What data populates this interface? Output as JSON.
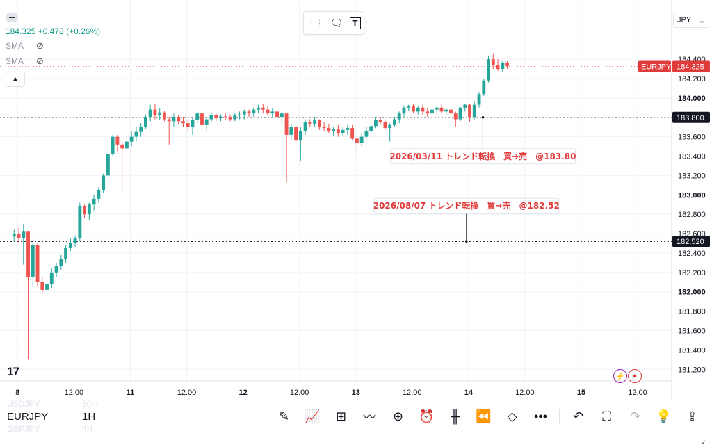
{
  "header": {
    "last_price": "184.325",
    "change": "+0.478 (+0.26%)",
    "indicators": [
      "SMA",
      "SMA"
    ],
    "currency": "JPY",
    "currency_caret": "⌄"
  },
  "floating_toolbar": {
    "drag_icon": "⋮⋮",
    "comment_icon": "🗨",
    "text_tool_icon": "T"
  },
  "bottom": {
    "symbol": "EURJPY",
    "timeframe": "1H",
    "ghost_above": {
      "symbol": "USDJPY",
      "tf": "30m"
    },
    "ghost_below": {
      "symbol": "GBPJPY",
      "tf": "4H"
    }
  },
  "logo": "17",
  "colors": {
    "up": "#26a69a",
    "down": "#ef5350",
    "label_red": "#e03b3b",
    "axis_text": "#131722",
    "grid": "#f0f3fa"
  },
  "chart_data": {
    "type": "candlestick",
    "symbol": "EURJPY",
    "interval": "1H",
    "y_range": [
      181.08,
      184.58
    ],
    "y_ticks": [
      "184.400",
      "184.200",
      "184.000",
      "183.800",
      "183.600",
      "183.400",
      "183.200",
      "183.000",
      "182.800",
      "182.600",
      "182.400",
      "182.200",
      "182.000",
      "181.800",
      "181.600",
      "181.400",
      "181.200"
    ],
    "x_ticks": [
      {
        "label": "8",
        "x": 0.75,
        "bold": true
      },
      {
        "label": "12:00",
        "x": 12.75
      },
      {
        "label": "11",
        "x": 24.75,
        "bold": true
      },
      {
        "label": "12:00",
        "x": 36.75
      },
      {
        "label": "12",
        "x": 48.75,
        "bold": true
      },
      {
        "label": "12:00",
        "x": 60.75
      },
      {
        "label": "13",
        "x": 72.75,
        "bold": true
      },
      {
        "label": "12:00",
        "x": 84.75
      },
      {
        "label": "14",
        "x": 96.75,
        "bold": true
      },
      {
        "label": "12:00",
        "x": 108.75
      },
      {
        "label": "15",
        "x": 120.75,
        "bold": true
      },
      {
        "label": "12:00",
        "x": 132.75
      }
    ],
    "x_range": [
      -3,
      140
    ],
    "candles": [
      [
        182.57,
        182.64,
        182.52,
        182.6
      ],
      [
        182.6,
        182.66,
        182.5,
        182.55
      ],
      [
        182.55,
        182.7,
        182.28,
        182.62
      ],
      [
        182.62,
        182.62,
        181.3,
        182.15
      ],
      [
        182.15,
        182.52,
        182.05,
        182.48
      ],
      [
        182.48,
        182.5,
        182.05,
        182.1
      ],
      [
        182.1,
        182.15,
        181.98,
        182.02
      ],
      [
        182.02,
        182.12,
        181.92,
        182.08
      ],
      [
        182.08,
        182.24,
        182.04,
        182.2
      ],
      [
        182.2,
        182.3,
        182.15,
        182.27
      ],
      [
        182.27,
        182.38,
        182.22,
        182.34
      ],
      [
        182.34,
        182.48,
        182.3,
        182.45
      ],
      [
        182.45,
        182.55,
        182.42,
        182.5
      ],
      [
        182.5,
        182.58,
        182.46,
        182.55
      ],
      [
        182.55,
        182.92,
        182.52,
        182.88
      ],
      [
        182.88,
        182.9,
        182.76,
        182.8
      ],
      [
        182.8,
        182.92,
        182.74,
        182.9
      ],
      [
        182.9,
        183.0,
        182.84,
        182.96
      ],
      [
        182.96,
        183.08,
        182.92,
        183.05
      ],
      [
        183.05,
        183.22,
        183.02,
        183.2
      ],
      [
        183.2,
        183.45,
        183.18,
        183.42
      ],
      [
        183.42,
        183.62,
        183.4,
        183.6
      ],
      [
        183.6,
        183.62,
        183.45,
        183.52
      ],
      [
        183.52,
        183.55,
        183.05,
        183.48
      ],
      [
        183.48,
        183.6,
        183.46,
        183.55
      ],
      [
        183.55,
        183.66,
        183.5,
        183.6
      ],
      [
        183.6,
        183.7,
        183.55,
        183.65
      ],
      [
        183.65,
        183.74,
        183.6,
        183.7
      ],
      [
        183.7,
        183.83,
        183.68,
        183.8
      ],
      [
        183.8,
        183.93,
        183.76,
        183.88
      ],
      [
        183.88,
        183.94,
        183.78,
        183.82
      ],
      [
        183.82,
        183.9,
        183.77,
        183.85
      ],
      [
        183.85,
        183.87,
        183.76,
        183.78
      ],
      [
        183.78,
        183.8,
        183.52,
        183.76
      ],
      [
        183.76,
        183.84,
        183.7,
        183.8
      ],
      [
        183.8,
        183.82,
        183.73,
        183.76
      ],
      [
        183.76,
        183.8,
        183.7,
        183.74
      ],
      [
        183.74,
        183.77,
        183.66,
        183.7
      ],
      [
        183.7,
        183.8,
        183.62,
        183.77
      ],
      [
        183.77,
        183.86,
        183.74,
        183.84
      ],
      [
        183.84,
        183.86,
        183.68,
        183.72
      ],
      [
        183.72,
        183.8,
        183.66,
        183.78
      ],
      [
        183.78,
        183.85,
        183.75,
        183.82
      ],
      [
        183.82,
        183.84,
        183.76,
        183.79
      ],
      [
        183.79,
        183.83,
        183.76,
        183.81
      ],
      [
        183.81,
        183.84,
        183.77,
        183.8
      ],
      [
        183.8,
        183.83,
        183.76,
        183.78
      ],
      [
        183.78,
        183.84,
        183.76,
        183.82
      ],
      [
        183.82,
        183.86,
        183.78,
        183.83
      ],
      [
        183.83,
        183.88,
        183.78,
        183.86
      ],
      [
        183.86,
        183.88,
        183.8,
        183.84
      ],
      [
        183.84,
        183.9,
        183.8,
        183.88
      ],
      [
        183.88,
        183.93,
        183.84,
        183.9
      ],
      [
        183.9,
        183.94,
        183.84,
        183.88
      ],
      [
        183.88,
        183.92,
        183.82,
        183.84
      ],
      [
        183.84,
        183.9,
        183.8,
        183.86
      ],
      [
        183.86,
        183.87,
        183.78,
        183.8
      ],
      [
        183.8,
        183.86,
        183.74,
        183.84
      ],
      [
        183.84,
        183.85,
        183.13,
        183.62
      ],
      [
        183.62,
        183.73,
        183.56,
        183.7
      ],
      [
        183.7,
        183.72,
        183.5,
        183.56
      ],
      [
        183.56,
        183.7,
        183.35,
        183.66
      ],
      [
        183.66,
        183.78,
        183.62,
        183.75
      ],
      [
        183.75,
        183.78,
        183.7,
        183.73
      ],
      [
        183.73,
        183.8,
        183.7,
        183.77
      ],
      [
        183.77,
        183.78,
        183.67,
        183.7
      ],
      [
        183.7,
        183.75,
        183.66,
        183.69
      ],
      [
        183.69,
        183.73,
        183.64,
        183.66
      ],
      [
        183.66,
        183.7,
        183.61,
        183.68
      ],
      [
        183.68,
        183.72,
        183.6,
        183.64
      ],
      [
        183.64,
        183.7,
        183.61,
        183.67
      ],
      [
        183.67,
        183.72,
        183.62,
        183.69
      ],
      [
        183.69,
        183.72,
        183.57,
        183.58
      ],
      [
        183.58,
        183.6,
        183.43,
        183.54
      ],
      [
        183.54,
        183.64,
        183.5,
        183.6
      ],
      [
        183.6,
        183.7,
        183.58,
        183.66
      ],
      [
        183.66,
        183.74,
        183.63,
        183.71
      ],
      [
        183.71,
        183.8,
        183.69,
        183.77
      ],
      [
        183.77,
        183.8,
        183.73,
        183.75
      ],
      [
        183.75,
        183.78,
        183.67,
        183.69
      ],
      [
        183.69,
        183.74,
        183.55,
        183.72
      ],
      [
        183.72,
        183.8,
        183.7,
        183.78
      ],
      [
        183.78,
        183.86,
        183.74,
        183.84
      ],
      [
        183.84,
        183.92,
        183.8,
        183.9
      ],
      [
        183.9,
        183.93,
        183.87,
        183.92
      ],
      [
        183.92,
        183.94,
        183.84,
        183.86
      ],
      [
        183.86,
        183.92,
        183.83,
        183.9
      ],
      [
        183.9,
        183.93,
        183.82,
        183.86
      ],
      [
        183.86,
        183.9,
        183.8,
        183.84
      ],
      [
        183.84,
        183.9,
        183.82,
        183.88
      ],
      [
        183.88,
        183.92,
        183.84,
        183.9
      ],
      [
        183.9,
        183.93,
        183.84,
        183.86
      ],
      [
        183.86,
        183.9,
        183.82,
        183.88
      ],
      [
        183.88,
        183.9,
        183.8,
        183.84
      ],
      [
        183.84,
        183.86,
        183.7,
        183.78
      ],
      [
        183.78,
        183.92,
        183.76,
        183.9
      ],
      [
        183.9,
        183.94,
        183.86,
        183.93
      ],
      [
        183.93,
        183.94,
        183.75,
        183.8
      ],
      [
        183.8,
        183.96,
        183.78,
        183.93
      ],
      [
        183.93,
        184.06,
        183.9,
        184.04
      ],
      [
        184.04,
        184.2,
        184.02,
        184.18
      ],
      [
        184.18,
        184.43,
        184.16,
        184.4
      ],
      [
        184.4,
        184.46,
        184.3,
        184.34
      ],
      [
        184.34,
        184.4,
        184.28,
        184.3
      ],
      [
        184.3,
        184.38,
        184.27,
        184.36
      ],
      [
        184.36,
        184.38,
        184.3,
        184.33
      ]
    ],
    "lines": [
      {
        "price": 183.8,
        "label": "183.800"
      },
      {
        "price": 182.52,
        "label": "182.520"
      }
    ],
    "current_price": {
      "symbol": "EURJPY",
      "value": "184.325",
      "price": 184.325
    },
    "annotations": [
      {
        "text": "2026/03/11 トレンド転換　買➔売　@183.80",
        "price": 183.8,
        "x": 99.8
      },
      {
        "text": "2026/08/07 トレンド転換　買⇒売　@182.52",
        "price": 182.52,
        "x": 96.3
      }
    ]
  },
  "toolbar_icons": [
    "pen-icon",
    "indicators-icon",
    "grid-icon",
    "trend-icon",
    "plus-circle-icon",
    "alarm-icon",
    "candles-icon",
    "replay-icon",
    "layers-icon",
    "more-icon",
    "divider",
    "undo-icon",
    "fullscreen-icon",
    "redo-icon",
    "lightbulb-icon",
    "share-icon"
  ],
  "toolbar_glyphs": [
    "✎",
    "📈",
    "⊞",
    "〰",
    "⊕",
    "⏰",
    "╫",
    "⏪",
    "◇",
    "•••",
    "",
    "↶",
    "⛶",
    "↷",
    "💡",
    "⇪"
  ]
}
